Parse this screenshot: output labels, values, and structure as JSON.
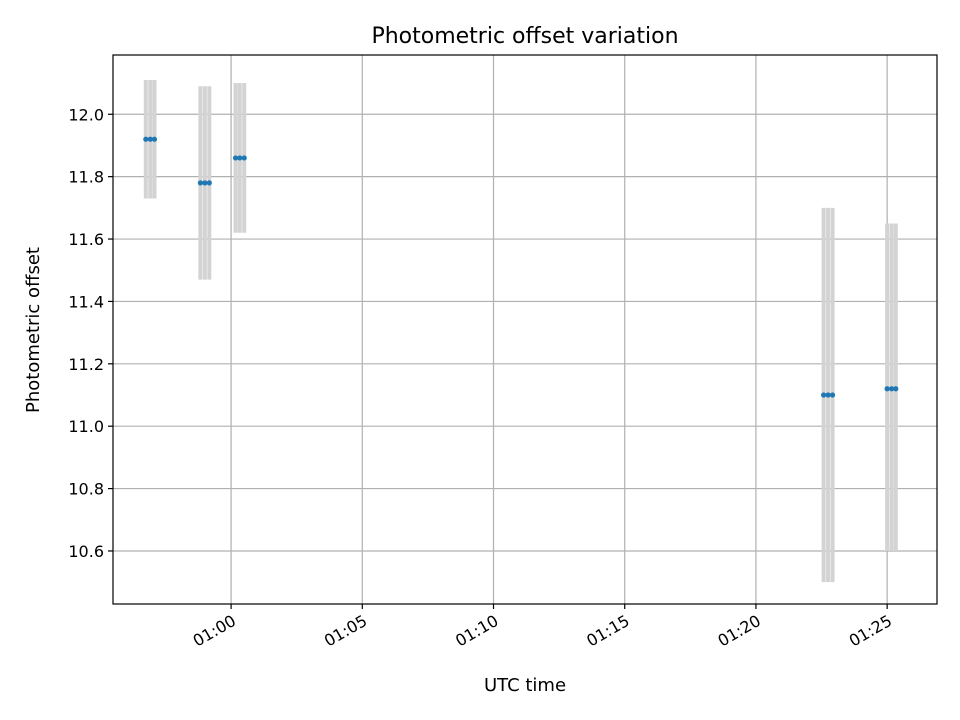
{
  "chart_data": {
    "type": "scatter",
    "title": "Photometric offset variation",
    "xlabel": "UTC time",
    "ylabel": "Photometric offset",
    "x_ticks": [
      "01:00",
      "01:05",
      "01:10",
      "01:15",
      "01:20",
      "01:25"
    ],
    "x_tick_minutes": [
      60,
      65,
      70,
      75,
      80,
      85
    ],
    "y_ticks": [
      "10.6",
      "10.8",
      "11.0",
      "11.2",
      "11.4",
      "11.6",
      "11.8",
      "12.0"
    ],
    "y_tick_values": [
      10.6,
      10.8,
      11.0,
      11.2,
      11.4,
      11.6,
      11.8,
      12.0
    ],
    "xlim_minutes": [
      55.5,
      86.9
    ],
    "ylim": [
      10.43,
      12.19
    ],
    "grid": true,
    "colors": {
      "points": "#1f77b4",
      "error_bars": "#d3d3d3",
      "grid": "#b0b0b0"
    },
    "groups": [
      {
        "x_minutes": [
          56.75,
          56.92,
          57.08
        ],
        "y": 11.92,
        "err_low": 11.73,
        "err_high": 12.11
      },
      {
        "x_minutes": [
          58.83,
          59.0,
          59.17
        ],
        "y": 11.78,
        "err_low": 11.47,
        "err_high": 12.09
      },
      {
        "x_minutes": [
          60.17,
          60.33,
          60.5
        ],
        "y": 11.86,
        "err_low": 11.62,
        "err_high": 12.1
      },
      {
        "x_minutes": [
          82.58,
          82.75,
          82.92
        ],
        "y": 11.1,
        "err_low": 10.5,
        "err_high": 11.7
      },
      {
        "x_minutes": [
          85.0,
          85.17,
          85.33
        ],
        "y": 11.12,
        "err_low": 10.6,
        "err_high": 11.65
      }
    ]
  }
}
